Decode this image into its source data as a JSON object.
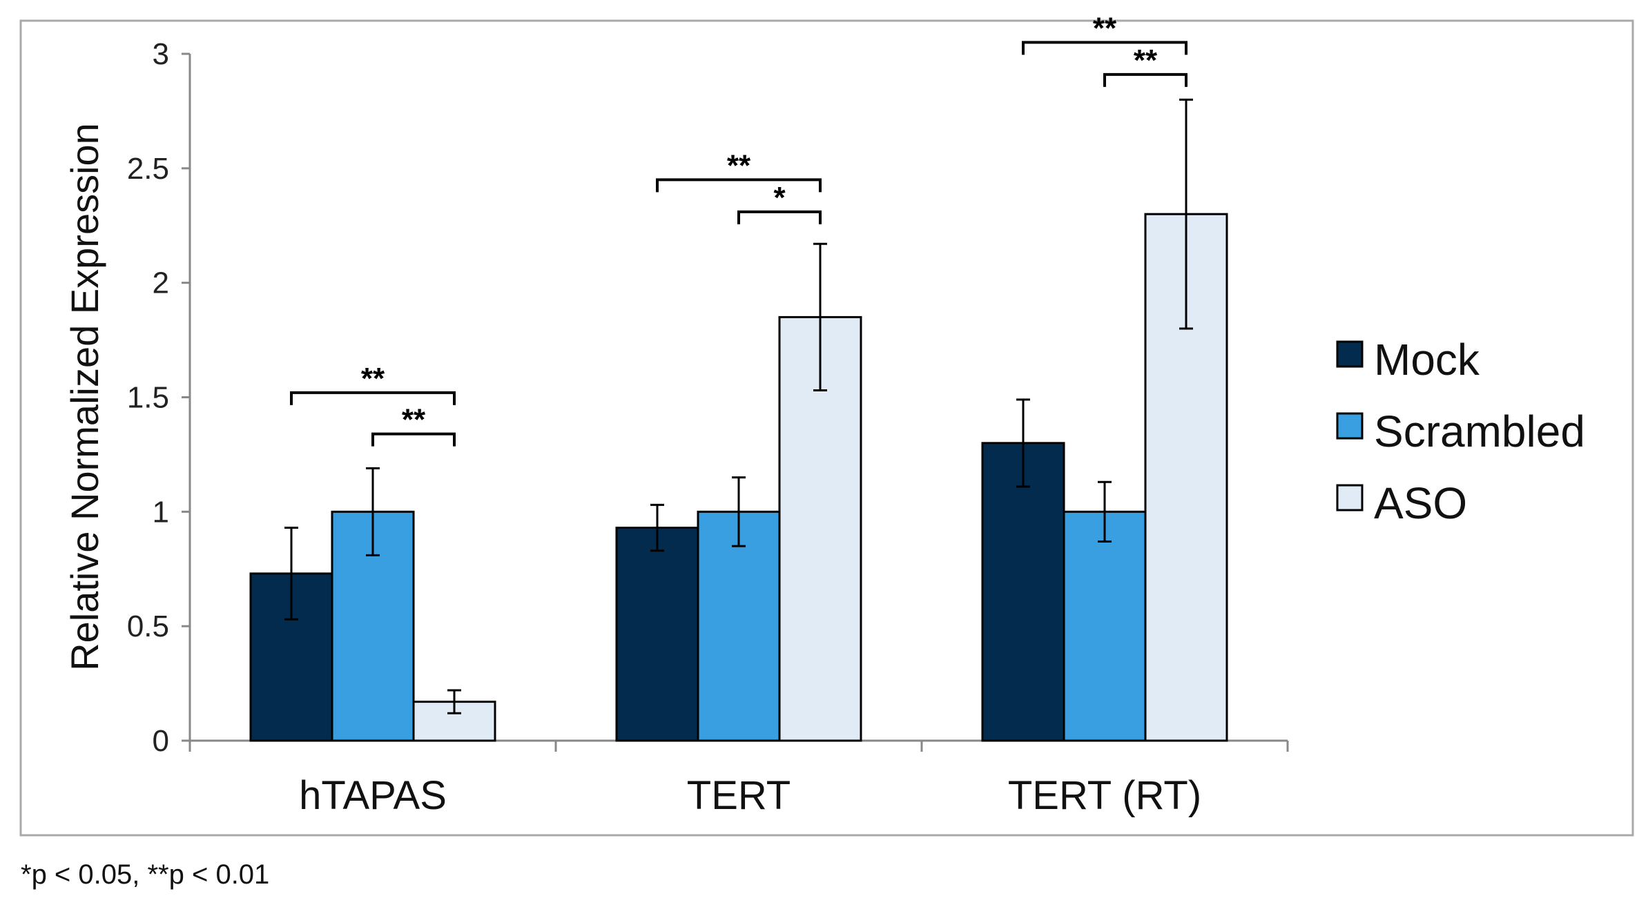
{
  "chart_data": {
    "type": "bar",
    "title": "",
    "xlabel": "",
    "ylabel": "Relative Normalized Expression",
    "ylim": [
      0,
      3
    ],
    "yticks": [
      "0",
      "0.5",
      "1",
      "1.5",
      "2",
      "2.5",
      "3"
    ],
    "ytick_values": [
      0,
      0.5,
      1,
      1.5,
      2,
      2.5,
      3
    ],
    "categories": [
      "hTAPAS",
      "TERT",
      "TERT (RT)"
    ],
    "series": [
      {
        "name": "Mock",
        "color": "#022b4e",
        "values": [
          0.73,
          0.93,
          1.3
        ],
        "errors": [
          0.2,
          0.1,
          0.19
        ]
      },
      {
        "name": "Scrambled",
        "color": "#3a9fe0",
        "values": [
          1.0,
          1.0,
          1.0
        ],
        "errors": [
          0.19,
          0.15,
          0.13
        ]
      },
      {
        "name": "ASO",
        "color": "#e0ebf5",
        "values": [
          0.17,
          1.85,
          2.3
        ],
        "errors": [
          0.05,
          0.32,
          0.5
        ]
      }
    ],
    "significance": [
      {
        "category": 0,
        "from_series": 0,
        "to_series": 2,
        "level": 1.52,
        "label": "**"
      },
      {
        "category": 0,
        "from_series": 1,
        "to_series": 2,
        "level": 1.34,
        "label": "**"
      },
      {
        "category": 1,
        "from_series": 0,
        "to_series": 2,
        "level": 2.45,
        "label": "**"
      },
      {
        "category": 1,
        "from_series": 1,
        "to_series": 2,
        "level": 2.31,
        "label": "*"
      },
      {
        "category": 2,
        "from_series": 0,
        "to_series": 2,
        "level": 3.05,
        "label": "**"
      },
      {
        "category": 2,
        "from_series": 1,
        "to_series": 2,
        "level": 2.91,
        "label": "**"
      }
    ],
    "legend_position": "right",
    "footnote": "*p < 0.05, **p < 0.01"
  }
}
